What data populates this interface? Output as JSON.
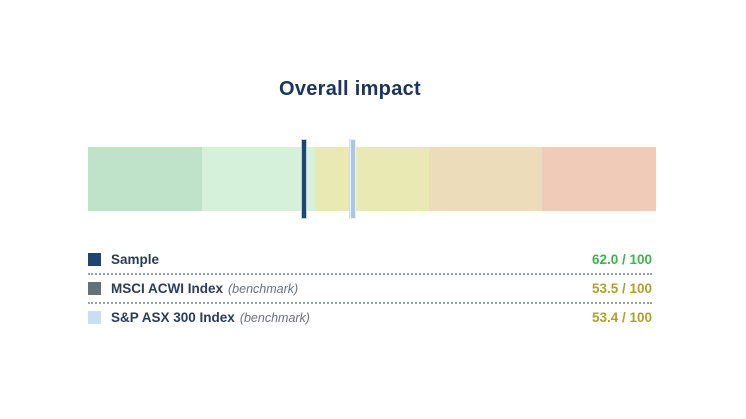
{
  "title": "Overall impact",
  "colors": {
    "title_text": "#1c3560",
    "label_text": "#2b3c58",
    "benchmark_text": "#6b7078",
    "separator": "#9aa0a8",
    "value_sample": "#3cb54a",
    "value_benchmark": "#aba32c"
  },
  "chart_data": {
    "type": "bar",
    "subtype": "bullet-gauge",
    "title": "Overall impact",
    "scale": {
      "min": 0,
      "max": 100,
      "orientation": "horizontal",
      "high_end": "left"
    },
    "bands": [
      {
        "name": "band-1",
        "color": "#bee3c8"
      },
      {
        "name": "band-2",
        "color": "#d5f1da"
      },
      {
        "name": "band-3",
        "color": "#e9e9b3"
      },
      {
        "name": "band-4",
        "color": "#eddcb9"
      },
      {
        "name": "band-5",
        "color": "#f0cbb8"
      }
    ],
    "series": [
      {
        "name": "Sample",
        "suffix": "",
        "value": 62.0,
        "display": "62.0 / 100",
        "marker_color": "#1e4673",
        "swatch_color": "#1e4572",
        "value_color": "#3cb54a"
      },
      {
        "name": "MSCI ACWI Index",
        "suffix": "(benchmark)",
        "value": 53.5,
        "display": "53.5 / 100",
        "marker_color": "#667077",
        "swatch_color": "#667077",
        "value_color": "#aba32c"
      },
      {
        "name": "S&P ASX 300 Index",
        "suffix": "(benchmark)",
        "value": 53.4,
        "display": "53.4 / 100",
        "marker_color": "#a9c6e8",
        "swatch_color": "#c9ddf4",
        "value_color": "#aba32c"
      }
    ],
    "legend_position": "bottom",
    "grid": false
  }
}
